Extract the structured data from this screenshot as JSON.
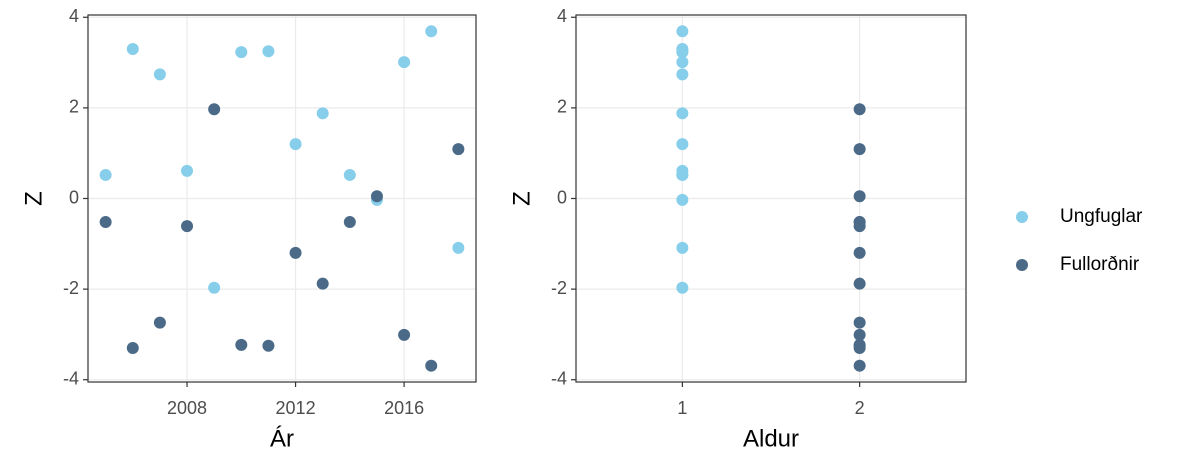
{
  "chart_data": [
    {
      "type": "scatter",
      "xlabel": "Ár",
      "ylabel": "Z",
      "xlim": [
        2004.35,
        2018.65
      ],
      "xticks": [
        2008,
        2012,
        2016
      ],
      "ylim": [
        -4.05,
        4.05
      ],
      "yticks": [
        -4,
        -2,
        0,
        2,
        4
      ],
      "grid": true,
      "series": [
        {
          "name": "Ungfuglar",
          "color": "#87ceeb",
          "x": [
            2005,
            2006,
            2007,
            2008,
            2009,
            2010,
            2011,
            2012,
            2013,
            2014,
            2015,
            2016,
            2017,
            2018
          ],
          "values": [
            0.52,
            3.3,
            2.74,
            0.61,
            -1.97,
            3.23,
            3.25,
            1.2,
            1.88,
            0.52,
            -0.03,
            3.01,
            3.69,
            -1.09
          ]
        },
        {
          "name": "Fullorðnir",
          "color": "#4a6a88",
          "x": [
            2005,
            2006,
            2007,
            2008,
            2009,
            2010,
            2011,
            2012,
            2013,
            2014,
            2015,
            2016,
            2017,
            2018
          ],
          "values": [
            -0.52,
            -3.3,
            -2.74,
            -0.61,
            1.97,
            -3.23,
            -3.25,
            -1.2,
            -1.88,
            -0.52,
            0.05,
            -3.01,
            -3.69,
            1.09
          ]
        }
      ]
    },
    {
      "type": "scatter",
      "xlabel": "Aldur",
      "ylabel": "Z",
      "xlim": [
        0.4,
        2.6
      ],
      "xticks": [
        1,
        2
      ],
      "ylim": [
        -4.05,
        4.05
      ],
      "yticks": [
        -4,
        -2,
        0,
        2,
        4
      ],
      "grid": true,
      "series": [
        {
          "name": "Ungfuglar",
          "color": "#87ceeb",
          "x": [
            1,
            1,
            1,
            1,
            1,
            1,
            1,
            1,
            1,
            1,
            1,
            1,
            1,
            1
          ],
          "values": [
            0.52,
            3.3,
            2.74,
            0.61,
            -1.97,
            3.23,
            3.25,
            1.2,
            1.88,
            0.52,
            -0.03,
            3.01,
            3.69,
            -1.09
          ]
        },
        {
          "name": "Fullorðnir",
          "color": "#4a6a88",
          "x": [
            2,
            2,
            2,
            2,
            2,
            2,
            2,
            2,
            2,
            2,
            2,
            2,
            2,
            2
          ],
          "values": [
            -0.52,
            -3.3,
            -2.74,
            -0.61,
            1.97,
            -3.23,
            -3.25,
            -1.2,
            -1.88,
            -0.52,
            0.05,
            -3.01,
            -3.69,
            1.09
          ]
        }
      ]
    }
  ]
}
